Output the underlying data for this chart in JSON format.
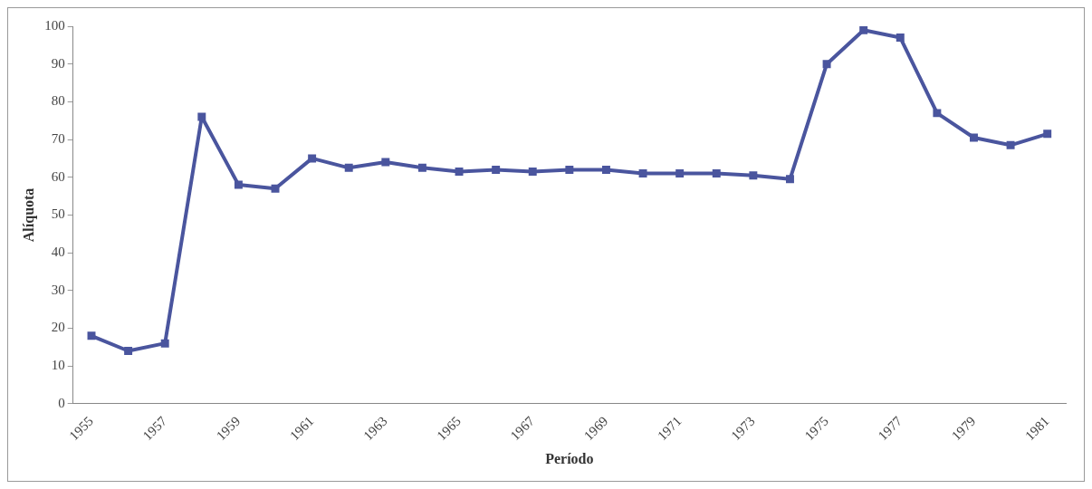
{
  "chart_data": {
    "type": "line",
    "xlabel": "Período",
    "ylabel": "Alíquota",
    "categories": [
      "1955",
      null,
      "1957",
      null,
      "1959",
      null,
      "1961",
      null,
      "1963",
      null,
      "1965",
      null,
      "1967",
      null,
      "1969",
      null,
      "1971",
      null,
      "1973",
      null,
      "1975",
      null,
      "1977",
      null,
      "1979",
      null,
      "1981"
    ],
    "series": [
      {
        "color": "#4a559e",
        "values": [
          18,
          14,
          16,
          76,
          58,
          57,
          65,
          62.5,
          64,
          62.5,
          61.5,
          62,
          61.5,
          62,
          62,
          61,
          61,
          61,
          60.5,
          59.5,
          90,
          99,
          97,
          77,
          70.5,
          68.5,
          71.5
        ]
      }
    ],
    "ylim": [
      0,
      100
    ],
    "yticks": [
      0,
      10,
      20,
      30,
      40,
      50,
      60,
      70,
      80,
      90,
      100
    ],
    "grid": false,
    "legend": false,
    "marker": "square",
    "line_style": "solid"
  }
}
